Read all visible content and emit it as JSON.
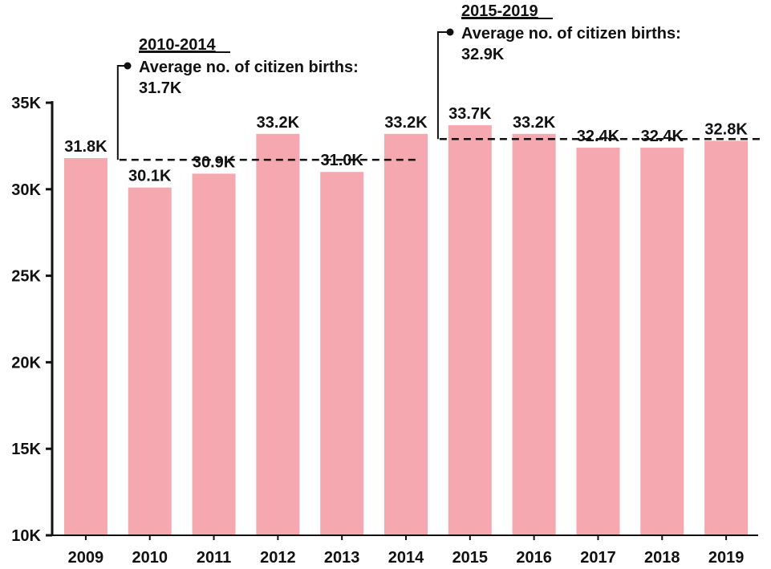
{
  "chart_data": {
    "type": "bar",
    "title": "",
    "xlabel": "",
    "ylabel": "",
    "categories": [
      "2009",
      "2010",
      "2011",
      "2012",
      "2013",
      "2014",
      "2015",
      "2016",
      "2017",
      "2018",
      "2019"
    ],
    "values": [
      31.8,
      30.1,
      30.9,
      33.2,
      31.0,
      33.2,
      33.7,
      33.2,
      32.4,
      32.4,
      32.8
    ],
    "data_labels": [
      "31.8K",
      "30.1K",
      "30.9K",
      "33.2K",
      "31.0K",
      "33.2K",
      "33.7K",
      "33.2K",
      "32.4K",
      "32.4K",
      "32.8K"
    ],
    "ylim": [
      10,
      35
    ],
    "yticks": [
      10,
      15,
      20,
      25,
      30,
      35
    ],
    "ytick_labels": [
      "10K",
      "15K",
      "20K",
      "25K",
      "30K",
      "35K"
    ],
    "grid": false,
    "legend": "none",
    "bar_color": "#f5a8b0",
    "annotations": [
      {
        "period": "2010-2014",
        "label": "Average no. of citizen births:",
        "value_label": "31.7K",
        "value": 31.7,
        "start_category": "2010",
        "end_category": "2014"
      },
      {
        "period": "2015-2019",
        "label": "Average no. of citizen births:",
        "value_label": "32.9K",
        "value": 32.9,
        "start_category": "2015",
        "end_category": "2019"
      }
    ]
  }
}
